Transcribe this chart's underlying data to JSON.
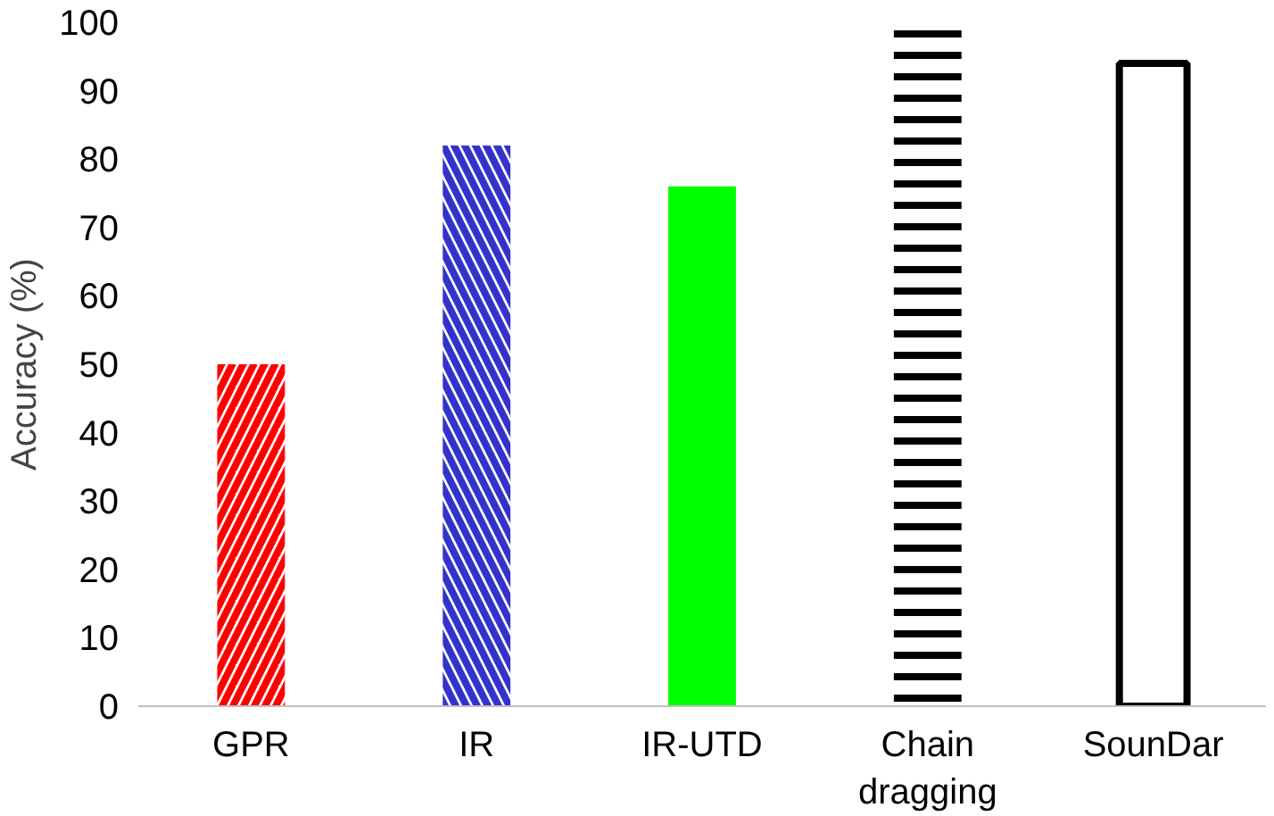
{
  "chart_data": {
    "type": "bar",
    "ylabel": "Accuracy (%)",
    "categories": [
      "GPR",
      "IR",
      "IR-UTD",
      "Chain dragging",
      "SounDar"
    ],
    "values": [
      50,
      82,
      76,
      100,
      94
    ],
    "colors": [
      "#ff0000",
      "#3333cc",
      "#00ff00",
      "#000000",
      "#000000"
    ],
    "ylim": [
      0,
      100
    ],
    "yticks": [
      0,
      10,
      20,
      30,
      40,
      50,
      60,
      70,
      80,
      90,
      100
    ],
    "grid": false
  }
}
